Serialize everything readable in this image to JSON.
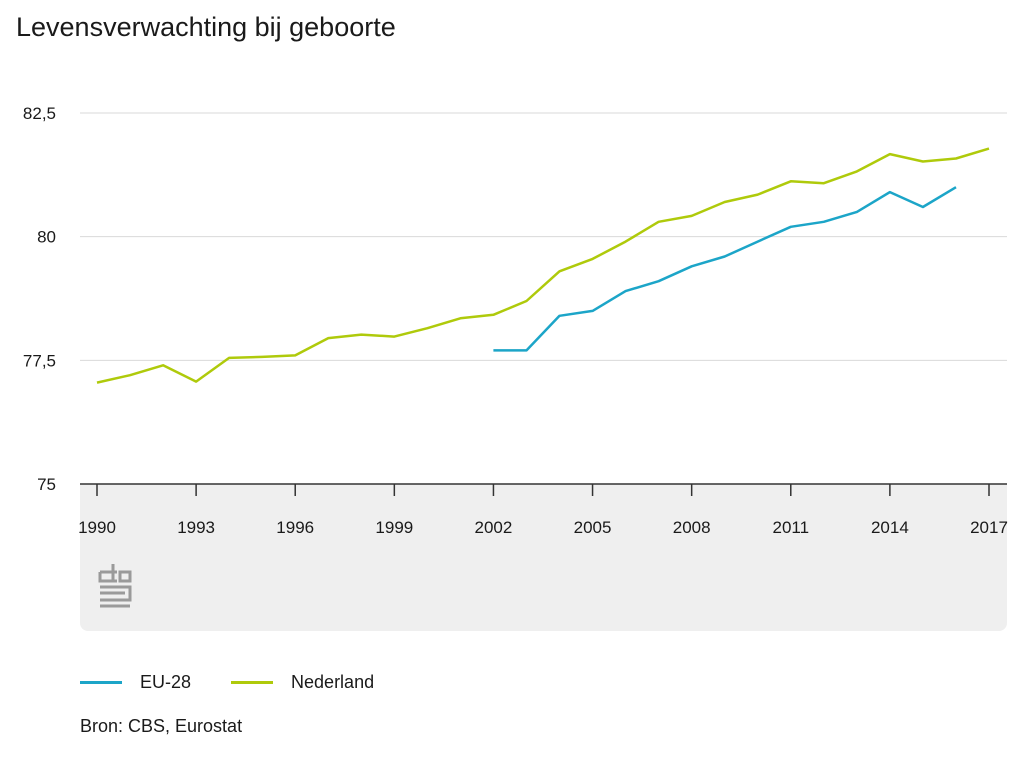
{
  "title": "Levensverwachting bij geboorte",
  "source": "Bron: CBS, Eurostat",
  "logo_icon": "cbs-logo-icon",
  "colors": {
    "eu": "#1ca5c8",
    "nl": "#afca0b",
    "grid": "#d9d9d9",
    "axis": "#333333",
    "band": "#efefef"
  },
  "chart_data": {
    "type": "line",
    "title": "Levensverwachting bij geboorte",
    "xlabel": "",
    "ylabel": "",
    "xlim": [
      1990,
      2017
    ],
    "ylim": [
      75,
      82.5
    ],
    "yticks": [
      75,
      77.5,
      80,
      82.5
    ],
    "ytick_labels": [
      "75",
      "77,5",
      "80",
      "82,5"
    ],
    "xticks": [
      1990,
      1993,
      1996,
      1999,
      2002,
      2005,
      2008,
      2011,
      2014,
      2017
    ],
    "xtick_labels": [
      "1990",
      "1993",
      "1996",
      "1999",
      "2002",
      "2005",
      "2008",
      "2011",
      "2014",
      "2017"
    ],
    "legend_position": "bottom-left",
    "series": [
      {
        "name": "EU-28",
        "color": "#1ca5c8",
        "x": [
          2002,
          2003,
          2004,
          2005,
          2006,
          2007,
          2008,
          2009,
          2010,
          2011,
          2012,
          2013,
          2014,
          2015,
          2016
        ],
        "values": [
          77.7,
          77.7,
          78.4,
          78.5,
          78.9,
          79.1,
          79.4,
          79.6,
          79.9,
          80.2,
          80.3,
          80.5,
          80.9,
          80.6,
          81.0
        ]
      },
      {
        "name": "Nederland",
        "color": "#afca0b",
        "x": [
          1990,
          1991,
          1992,
          1993,
          1994,
          1995,
          1996,
          1997,
          1998,
          1999,
          2000,
          2001,
          2002,
          2003,
          2004,
          2005,
          2006,
          2007,
          2008,
          2009,
          2010,
          2011,
          2012,
          2013,
          2014,
          2015,
          2016,
          2017
        ],
        "values": [
          77.05,
          77.2,
          77.4,
          77.07,
          77.55,
          77.57,
          77.6,
          77.95,
          78.02,
          77.98,
          78.15,
          78.35,
          78.42,
          78.7,
          79.3,
          79.55,
          79.9,
          80.3,
          80.42,
          80.7,
          80.85,
          81.12,
          81.08,
          81.32,
          81.67,
          81.52,
          81.58,
          81.78
        ]
      }
    ]
  }
}
